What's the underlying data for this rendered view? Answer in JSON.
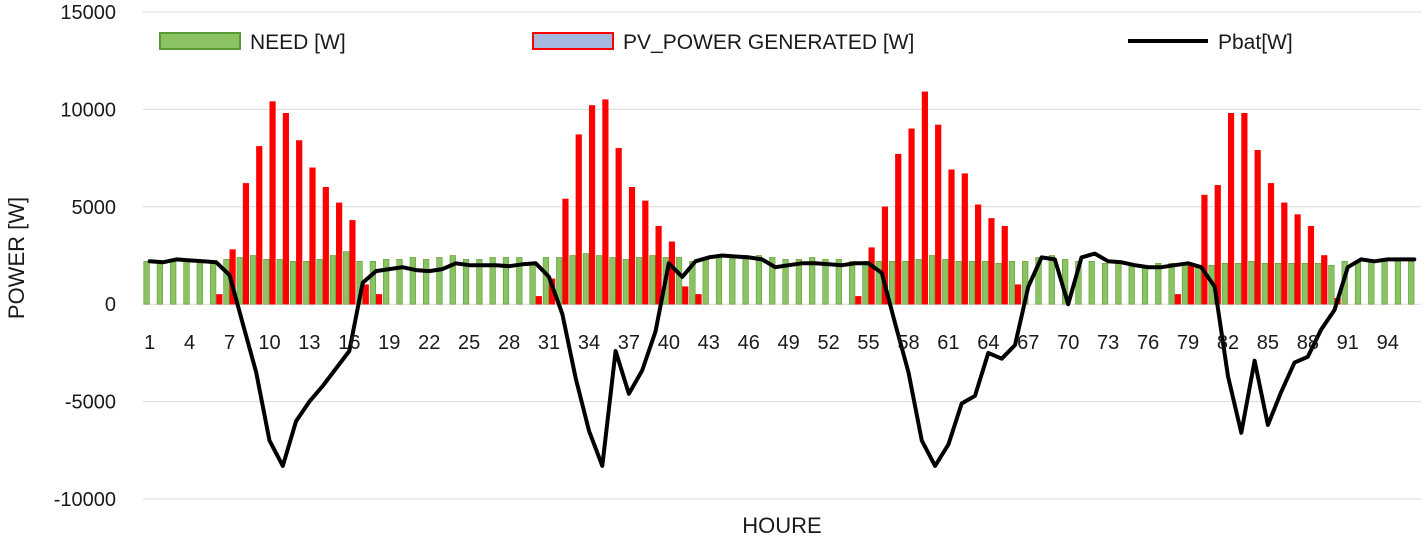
{
  "chart_data": {
    "type": "bar",
    "title": "",
    "xlabel": "HOURE",
    "ylabel": "POWER [W]",
    "ylim": [
      -10000,
      15000
    ],
    "yticks": [
      15000,
      10000,
      5000,
      0,
      -5000,
      -10000
    ],
    "grid": true,
    "legend_position": "top",
    "x": [
      1,
      2,
      3,
      4,
      5,
      6,
      7,
      8,
      9,
      10,
      11,
      12,
      13,
      14,
      15,
      16,
      17,
      18,
      19,
      20,
      21,
      22,
      23,
      24,
      25,
      26,
      27,
      28,
      29,
      30,
      31,
      32,
      33,
      34,
      35,
      36,
      37,
      38,
      39,
      40,
      41,
      42,
      43,
      44,
      45,
      46,
      47,
      48,
      49,
      50,
      51,
      52,
      53,
      54,
      55,
      56,
      57,
      58,
      59,
      60,
      61,
      62,
      63,
      64,
      65,
      66,
      67,
      68,
      69,
      70,
      71,
      72,
      73,
      74,
      75,
      76,
      77,
      78,
      79,
      80,
      81,
      82,
      83,
      84,
      85,
      86,
      87,
      88,
      89,
      90,
      91,
      92,
      93,
      94,
      95,
      96
    ],
    "x_tick_labels": [
      "1",
      "4",
      "7",
      "10",
      "13",
      "16",
      "19",
      "22",
      "25",
      "28",
      "31",
      "34",
      "37",
      "40",
      "43",
      "46",
      "49",
      "52",
      "55",
      "58",
      "61",
      "64",
      "67",
      "70",
      "73",
      "76",
      "79",
      "82",
      "85",
      "88",
      "91",
      "94"
    ],
    "series": [
      {
        "name": "NEED [W]",
        "kind": "bar",
        "color": "#8bc363",
        "edge": "#5a9a33",
        "values": [
          2200,
          2100,
          2200,
          2200,
          2200,
          2100,
          2300,
          2400,
          2500,
          2300,
          2300,
          2200,
          2200,
          2300,
          2500,
          2700,
          2200,
          2200,
          2300,
          2300,
          2400,
          2300,
          2400,
          2500,
          2300,
          2300,
          2400,
          2400,
          2400,
          2100,
          2400,
          2400,
          2500,
          2600,
          2500,
          2400,
          2300,
          2400,
          2500,
          2400,
          2400,
          2200,
          2300,
          2400,
          2500,
          2500,
          2500,
          2400,
          2300,
          2300,
          2400,
          2300,
          2300,
          2200,
          2200,
          2200,
          2200,
          2200,
          2300,
          2500,
          2300,
          2200,
          2200,
          2200,
          2100,
          2200,
          2200,
          2400,
          2500,
          2300,
          2200,
          2200,
          2100,
          2100,
          2100,
          2000,
          2100,
          2100,
          2100,
          2000,
          2000,
          2100,
          2100,
          2200,
          2100,
          2100,
          2100,
          2100,
          2100,
          2000,
          2200,
          2200,
          2200,
          2200,
          2200,
          2200
        ]
      },
      {
        "name": "PV_POWER GENERATED [W]",
        "kind": "bar",
        "color": "#ff0000",
        "edge": "#ff0000",
        "legend_fill": "#a4b8e0",
        "values": [
          0,
          0,
          0,
          0,
          0,
          500,
          2800,
          6200,
          8100,
          10400,
          9800,
          8400,
          7000,
          6000,
          5200,
          4300,
          1000,
          500,
          0,
          0,
          0,
          0,
          0,
          0,
          0,
          0,
          0,
          0,
          0,
          400,
          1300,
          5400,
          8700,
          10200,
          10500,
          8000,
          6000,
          5300,
          4000,
          3200,
          900,
          500,
          0,
          0,
          0,
          0,
          0,
          0,
          0,
          0,
          0,
          0,
          0,
          400,
          2900,
          5000,
          7700,
          9000,
          10900,
          9200,
          6900,
          6700,
          5100,
          4400,
          4000,
          1000,
          0,
          0,
          0,
          0,
          0,
          0,
          0,
          0,
          0,
          0,
          0,
          500,
          2000,
          5600,
          6100,
          9800,
          9800,
          7900,
          6200,
          5200,
          4600,
          4000,
          2500,
          300,
          0,
          0,
          0,
          0,
          0,
          0
        ]
      },
      {
        "name": "Pbat[W]",
        "kind": "line",
        "color": "#000000",
        "values": [
          2200,
          2150,
          2300,
          2250,
          2200,
          2150,
          1500,
          -1000,
          -3500,
          -7000,
          -8300,
          -6000,
          -5000,
          -4200,
          -3300,
          -2400,
          1100,
          1700,
          1800,
          1900,
          1750,
          1700,
          1800,
          2100,
          2000,
          2000,
          2000,
          1950,
          2050,
          2100,
          1400,
          -500,
          -3800,
          -6500,
          -8300,
          -2400,
          -4600,
          -3400,
          -1400,
          2100,
          1400,
          2200,
          2400,
          2500,
          2450,
          2400,
          2300,
          1900,
          2000,
          2100,
          2100,
          2050,
          2000,
          2100,
          2100,
          1600,
          -1000,
          -3500,
          -7000,
          -8300,
          -7200,
          -5100,
          -4700,
          -2500,
          -2800,
          -2100,
          900,
          2400,
          2300,
          0,
          2400,
          2600,
          2200,
          2150,
          2000,
          1900,
          1900,
          2000,
          2100,
          1900,
          900,
          -3700,
          -6600,
          -2900,
          -6200,
          -4500,
          -3000,
          -2700,
          -1300,
          -300,
          1900,
          2300,
          2200,
          2300,
          2300,
          2300
        ]
      }
    ]
  }
}
